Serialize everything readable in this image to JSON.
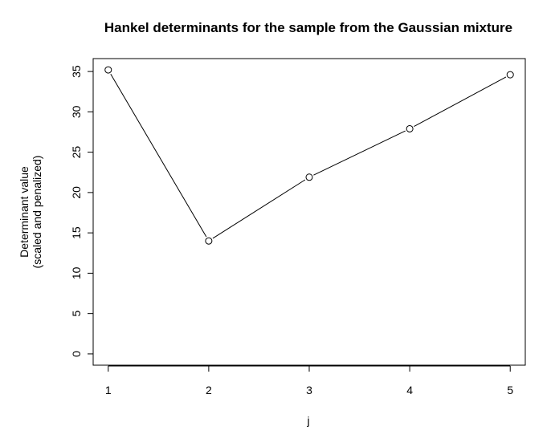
{
  "chart_data": {
    "type": "line",
    "title": "Hankel determinants for the sample from the Gaussian mixture",
    "xlabel": "j",
    "ylabel_lines": [
      "Determinant value",
      "(scaled and penalized)"
    ],
    "x": [
      1,
      2,
      3,
      4,
      5
    ],
    "y": [
      35.2,
      14.0,
      21.9,
      27.9,
      34.6
    ],
    "x_ticks": [
      1,
      2,
      3,
      4,
      5
    ],
    "y_ticks": [
      0,
      5,
      10,
      15,
      20,
      25,
      30,
      35
    ],
    "xlim": [
      0.85,
      5.15
    ],
    "ylim": [
      -1.4,
      36.6
    ],
    "marker": "open-circle",
    "grid": false,
    "legend": "none"
  }
}
